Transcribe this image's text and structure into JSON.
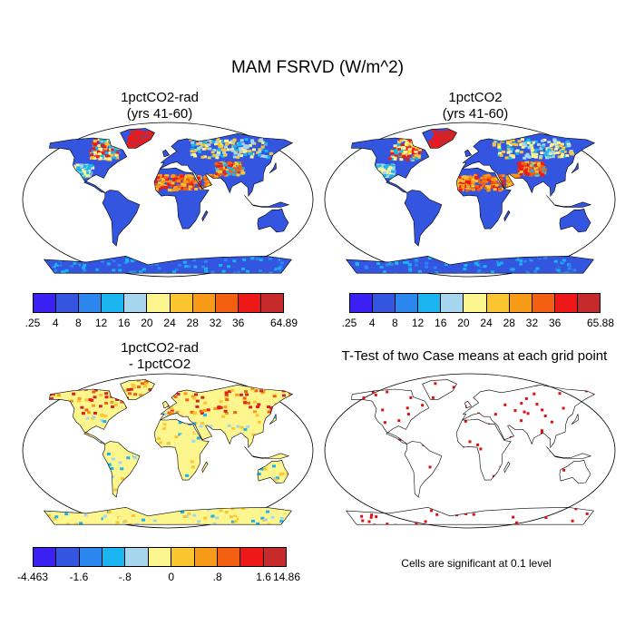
{
  "figure": {
    "title": "MAM FSRVD (W/m^2)"
  },
  "panels": [
    {
      "id": "case1",
      "title": [
        "1pctCO2-rad",
        "(yrs 41-60)"
      ],
      "fill": "full"
    },
    {
      "id": "case2",
      "title": [
        "1pctCO2",
        "(yrs 41-60)"
      ],
      "fill": "full"
    },
    {
      "id": "diff",
      "title": [
        "1pctCO2-rad",
        "- 1pctCO2"
      ],
      "fill": "diff"
    },
    {
      "id": "ttest",
      "title": [
        "T-Test of two Case means at each grid point"
      ],
      "fill": "sig",
      "note": "Cells are significant at 0.1 level"
    }
  ],
  "colorbars": {
    "case1": {
      "colors": [
        "#3a20f2",
        "#3355e0",
        "#2b86ee",
        "#1ab4f0",
        "#a6d6ee",
        "#fdf58e",
        "#fbc530",
        "#f79a18",
        "#f46012",
        "#ee1818",
        "#c62a2a"
      ],
      "labels": [
        ".25",
        "4",
        "8",
        "12",
        "16",
        "20",
        "24",
        "28",
        "32",
        "36",
        "64.89"
      ]
    },
    "case2": {
      "colors": [
        "#3a20f2",
        "#3355e0",
        "#2b86ee",
        "#1ab4f0",
        "#a6d6ee",
        "#fdf58e",
        "#fbc530",
        "#f79a18",
        "#f46012",
        "#ee1818",
        "#c62a2a"
      ],
      "labels": [
        ".25",
        "4",
        "8",
        "12",
        "16",
        "20",
        "24",
        "28",
        "32",
        "36",
        "65.88"
      ]
    },
    "diff": {
      "colors": [
        "#3a20f2",
        "#3355e0",
        "#2b86ee",
        "#1ab4f0",
        "#a6d6ee",
        "#fdf58e",
        "#fbc530",
        "#f79a18",
        "#f46012",
        "#ee1818",
        "#c62a2a"
      ],
      "labels": [
        "-4.463",
        "-1.6",
        "-.8",
        "0",
        ".8",
        "1.6",
        "14.86"
      ]
    }
  },
  "colors": {
    "ocean": "#ffffff",
    "coast": "#000000",
    "significant": "#e01010"
  }
}
